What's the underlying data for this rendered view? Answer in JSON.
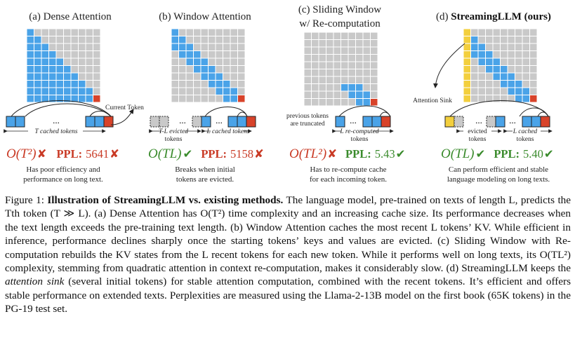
{
  "panels": [
    {
      "title": "(a) Dense Attention",
      "complexity": "O(T²)",
      "complexity_ok": false,
      "ppl_label": "PPL:",
      "ppl_value": "5641",
      "ppl_ok": false,
      "desc": [
        "Has poor efficiency and",
        "performance on long text."
      ]
    },
    {
      "title": "(b) Window Attention",
      "complexity": "O(TL)",
      "complexity_ok": true,
      "ppl_label": "PPL:",
      "ppl_value": "5158",
      "ppl_ok": false,
      "desc": [
        "Breaks when initial",
        "tokens are evicted."
      ]
    },
    {
      "title_lines": [
        "(c) Sliding Window",
        "w/ Re-computation"
      ],
      "complexity": "O(TL²)",
      "complexity_ok": false,
      "ppl_label": "PPL:",
      "ppl_value": "5.43",
      "ppl_ok": true,
      "desc": [
        "Has to re-compute cache",
        "for each incoming token."
      ]
    },
    {
      "title_prefix": "(d) ",
      "title_bold": "StreamingLLM (ours)",
      "complexity": "O(TL)",
      "complexity_ok": true,
      "ppl_label": "PPL:",
      "ppl_value": "5.40",
      "ppl_ok": true,
      "desc": [
        "Can perform efficient and stable",
        "language modeling on long texts."
      ]
    }
  ],
  "labels": {
    "current_token": "Current Token",
    "t_cached": "T cached tokens",
    "tl_evicted": "T-L evicted",
    "tokens": "tokens",
    "l_cached": "L cached tokens",
    "previous_tokens_1": "previous tokens",
    "previous_tokens_2": "are truncated",
    "l_recomputed_1": "L re-computed",
    "l_recomputed_2": "tokens",
    "attention_sink": "Attention Sink",
    "evicted": "evicted",
    "l_cached_2a": "L cached",
    "ellipsis": "...",
    "check": "✔",
    "cross": "✘"
  },
  "caption": {
    "figure_label": "Figure 1: ",
    "bold_title": "Illustration of StreamingLLM vs. existing methods.",
    "text_1": " The language model, pre-trained on texts of length L, predicts the Tth token (T ≫ L). (a) Dense Attention has O(T²) time complexity and an increasing cache size. Its performance decreases when the text length exceeds the pre-training text length. (b) Window Attention caches the most recent L tokens’ KV. While efficient in inference, performance declines sharply once the starting tokens’ keys and values are evicted. (c) Sliding Window with Re-computation rebuilds the KV states from the L recent tokens for each new token. While it performs well on long texts, its O(TL²) complexity, stemming from quadratic attention in context re-computation, makes it considerably slow. (d) StreamingLLM keeps the ",
    "attention_sink": "attention sink",
    "text_2": " (several initial tokens) for stable attention computation, combined with the recent tokens. It’s efficient and offers stable performance on extended texts. Perplexities are measured using the Llama-2-13B model on the first book (65K tokens) in the PG-19 test set."
  },
  "colors": {
    "blue": "#4aa3e8",
    "grey": "#c9c9c9",
    "red": "#d8432a",
    "yellow": "#f3cf3d",
    "bad": "#c93a25",
    "good": "#3a8b2c"
  }
}
